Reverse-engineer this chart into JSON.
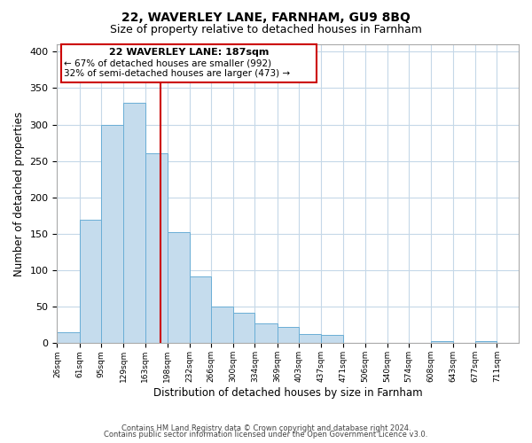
{
  "title": "22, WAVERLEY LANE, FARNHAM, GU9 8BQ",
  "subtitle": "Size of property relative to detached houses in Farnham",
  "xlabel": "Distribution of detached houses by size in Farnham",
  "ylabel": "Number of detached properties",
  "bar_left_edges": [
    26,
    61,
    95,
    129,
    163,
    198,
    232,
    266,
    300,
    334,
    369,
    403,
    437,
    471,
    506,
    540,
    574,
    608,
    643,
    677
  ],
  "bar_heights": [
    15,
    170,
    300,
    330,
    260,
    153,
    92,
    50,
    42,
    27,
    22,
    13,
    11,
    0,
    0,
    0,
    0,
    3,
    0,
    3
  ],
  "bar_color": "#c5dced",
  "bar_edgecolor": "#6aaed6",
  "vline_x": 187,
  "vline_color": "#cc0000",
  "ylim": [
    0,
    410
  ],
  "xlim": [
    26,
    745
  ],
  "xtick_labels": [
    "26sqm",
    "61sqm",
    "95sqm",
    "129sqm",
    "163sqm",
    "198sqm",
    "232sqm",
    "266sqm",
    "300sqm",
    "334sqm",
    "369sqm",
    "403sqm",
    "437sqm",
    "471sqm",
    "506sqm",
    "540sqm",
    "574sqm",
    "608sqm",
    "643sqm",
    "677sqm",
    "711sqm"
  ],
  "xtick_positions": [
    26,
    61,
    95,
    129,
    163,
    198,
    232,
    266,
    300,
    334,
    369,
    403,
    437,
    471,
    506,
    540,
    574,
    608,
    643,
    677,
    711
  ],
  "annotation_title": "22 WAVERLEY LANE: 187sqm",
  "annotation_line1": "← 67% of detached houses are smaller (992)",
  "annotation_line2": "32% of semi-detached houses are larger (473) →",
  "footer_line1": "Contains HM Land Registry data © Crown copyright and database right 2024.",
  "footer_line2": "Contains public sector information licensed under the Open Government Licence v3.0.",
  "bg_color": "#ffffff",
  "grid_color": "#c5d8e8",
  "ytick_values": [
    0,
    50,
    100,
    150,
    200,
    250,
    300,
    350,
    400
  ],
  "title_fontsize": 10,
  "subtitle_fontsize": 9
}
